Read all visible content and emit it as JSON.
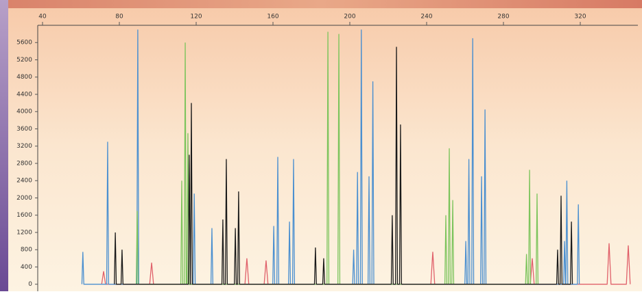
{
  "chart_data": {
    "type": "line",
    "xlim": [
      37.5,
      350
    ],
    "xticks": [
      40,
      80,
      120,
      160,
      200,
      240,
      280,
      320
    ],
    "ylim": [
      -100,
      6000
    ],
    "yticks": [
      0,
      400,
      800,
      1200,
      1600,
      2000,
      2400,
      2800,
      3200,
      3600,
      4000,
      4400,
      4800,
      5200,
      5600
    ],
    "series": [
      {
        "color": "#e0606a",
        "x": [
          70.8,
          71.8,
          72.8,
          95.8,
          96.8,
          97.8,
          145.4,
          146.4,
          147.4,
          155.4,
          156.4,
          157.4,
          242.2,
          243.2,
          244.2,
          294,
          295,
          296,
          334,
          335,
          336,
          344,
          345,
          346
        ],
        "values": [
          0,
          300,
          0,
          0,
          500,
          0,
          0,
          600,
          0,
          0,
          550,
          0,
          0,
          750,
          0,
          0,
          600,
          0,
          0,
          950,
          0,
          0,
          900,
          0
        ]
      },
      {
        "color": "#4a8fd0",
        "x": [
          60.5,
          61,
          61.5,
          73.4,
          73.9,
          74.4,
          89.1,
          89.6,
          90.1,
          118.5,
          119,
          119.5,
          127.7,
          128.2,
          128.7,
          159.9,
          160.4,
          160.9,
          162,
          162.5,
          163,
          168.1,
          168.6,
          169.1,
          170.2,
          170.7,
          171.2,
          201.5,
          202,
          202.5,
          203.5,
          204,
          204.5,
          205.5,
          206,
          206.5,
          209.5,
          210,
          210.5,
          211.5,
          212,
          212.5,
          259.9,
          260.4,
          260.9,
          261.5,
          262,
          262.5,
          263.5,
          264,
          264.5,
          268.1,
          268.6,
          269.1,
          269.9,
          270.4,
          270.9,
          311.3,
          311.8,
          312.3,
          312.5,
          313,
          313.5,
          318.5,
          319,
          319.5
        ],
        "values": [
          0,
          750,
          0,
          0,
          3300,
          0,
          0,
          5900,
          0,
          0,
          2100,
          0,
          0,
          1300,
          0,
          0,
          1350,
          0,
          0,
          2950,
          0,
          0,
          1450,
          0,
          0,
          2900,
          0,
          0,
          800,
          0,
          0,
          2600,
          0,
          0,
          5900,
          0,
          0,
          2500,
          0,
          0,
          4700,
          0,
          0,
          1000,
          0,
          0,
          2900,
          0,
          0,
          5700,
          0,
          0,
          2500,
          0,
          0,
          4050,
          0,
          0,
          1000,
          0,
          0,
          2400,
          0,
          0,
          1850,
          0
        ]
      },
      {
        "color": "#7cc45c",
        "x": [
          88.8,
          89.3,
          89.8,
          112,
          112.5,
          113,
          113.8,
          114.3,
          114.8,
          115.2,
          115.7,
          116.2,
          188.1,
          188.6,
          189.1,
          193.8,
          194.3,
          194.8,
          249.5,
          250,
          250.5,
          251.3,
          251.8,
          252.3,
          253.1,
          253.6,
          254.1,
          291.5,
          292,
          292.5,
          293.1,
          293.6,
          294.1,
          297,
          297.5,
          298
        ],
        "values": [
          0,
          1700,
          0,
          0,
          2400,
          0,
          0,
          5600,
          0,
          0,
          3500,
          0,
          0,
          5850,
          0,
          0,
          5800,
          0,
          0,
          1600,
          0,
          0,
          3150,
          0,
          0,
          1950,
          0,
          0,
          700,
          0,
          0,
          2650,
          0,
          0,
          2100,
          0
        ]
      },
      {
        "color": "#1a1a1a",
        "x": [
          77.4,
          77.9,
          78.4,
          80.9,
          81.4,
          81.9,
          115.9,
          116.4,
          116.9,
          117,
          117.5,
          118,
          133.4,
          133.9,
          134.4,
          135.2,
          135.7,
          136.2,
          139.9,
          140.4,
          140.9,
          141.6,
          142.1,
          142.6,
          181.6,
          182.1,
          182.6,
          185.9,
          186.4,
          186.9,
          221.6,
          222.1,
          222.6,
          223.8,
          224.3,
          224.8,
          225.9,
          226.4,
          226.9,
          307.7,
          308.2,
          308.7,
          309.5,
          310,
          310.5,
          314.9,
          315.4,
          315.9
        ],
        "values": [
          0,
          1200,
          0,
          0,
          800,
          0,
          0,
          3000,
          0,
          0,
          4200,
          0,
          0,
          1500,
          0,
          0,
          2900,
          0,
          0,
          1300,
          0,
          0,
          2150,
          0,
          0,
          850,
          0,
          0,
          600,
          0,
          0,
          1600,
          0,
          0,
          5500,
          0,
          0,
          3700,
          0,
          0,
          800,
          0,
          0,
          2050,
          0,
          0,
          1450,
          0
        ]
      }
    ]
  }
}
